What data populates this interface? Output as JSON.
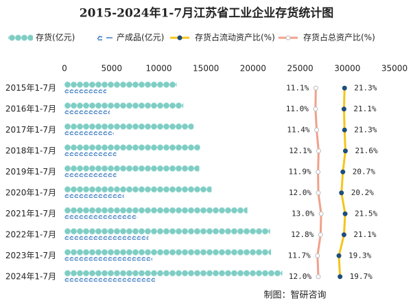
{
  "chart_data": {
    "type": "pictorial-bar-line",
    "title": "2015-2024年1-7月江苏省工业企业存货统计图",
    "categories": [
      "2015年1-7月",
      "2016年1-7月",
      "2017年1-7月",
      "2018年1-7月",
      "2019年1-7月",
      "2020年1-7月",
      "2021年1-7月",
      "2022年1-7月",
      "2023年1-7月",
      "2024年1-7月"
    ],
    "xlim": [
      0,
      35000
    ],
    "xticks": [
      0,
      5000,
      10000,
      15000,
      20000,
      25000,
      30000,
      35000
    ],
    "x2lim": [
      -78,
      39
    ],
    "series": [
      {
        "name": "存货(亿元)",
        "color": "#7fcdc4",
        "values": [
          11900,
          12600,
          13700,
          14400,
          14300,
          15600,
          19400,
          21800,
          21900,
          23100
        ]
      },
      {
        "name": "产成品(亿元)",
        "color": "#3b7bbf",
        "values": [
          4440,
          4800,
          5200,
          5500,
          5500,
          6300,
          7700,
          8900,
          9300,
          9700
        ]
      },
      {
        "name": "存货占流动资产比(%)",
        "color": "#f5c518",
        "axis": "x2",
        "values": [
          21.3,
          21.1,
          21.3,
          21.6,
          20.7,
          20.2,
          21.5,
          21.1,
          19.3,
          19.7
        ],
        "value_labels": [
          "21.3%",
          "21.1%",
          "21.3%",
          "21.6%",
          "20.7%",
          "20.2%",
          "21.5%",
          "21.1%",
          "19.3%",
          "19.7%"
        ]
      },
      {
        "name": "存货占总资产比(%)",
        "color": "#f0a08a",
        "axis": "x2",
        "values": [
          11.1,
          11.0,
          11.4,
          12.1,
          11.9,
          12.0,
          13.0,
          12.8,
          11.7,
          12.0
        ],
        "value_labels": [
          "11.1%",
          "11.0%",
          "11.4%",
          "12.1%",
          "11.9%",
          "12.0%",
          "13.0%",
          "12.8%",
          "11.7%",
          "12.0%"
        ]
      }
    ],
    "source": "制图：智研咨询"
  }
}
